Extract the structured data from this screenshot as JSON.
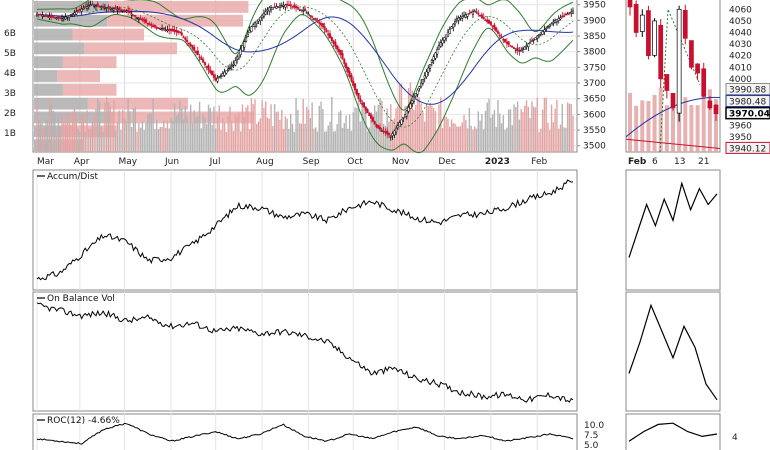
{
  "chart_data": [
    {
      "type": "candlestick",
      "panel": "price",
      "x_months": [
        "Mar",
        "Apr",
        "May",
        "Jun",
        "Jul",
        "Aug",
        "Sep",
        "Oct",
        "Nov",
        "Dec",
        "2023",
        "Feb"
      ],
      "y_ticks": [
        3500,
        3550,
        3600,
        3650,
        3700,
        3750,
        3800,
        3850,
        3900,
        3950
      ],
      "ylim": [
        3480,
        3965
      ],
      "volume_by_price_labels": [
        "1B",
        "2B",
        "3B",
        "4B",
        "5B",
        "6B"
      ],
      "volume_by_price_units": [
        0.9,
        1.5,
        4.0,
        2.8,
        1.5,
        1.2,
        1.5,
        2.6,
        2.0,
        3.8,
        3.9
      ],
      "close_anchors": [
        [
          0,
          3920
        ],
        [
          14,
          3905
        ],
        [
          30,
          3950
        ],
        [
          50,
          3930
        ],
        [
          65,
          3880
        ],
        [
          80,
          3860
        ],
        [
          90,
          3790
        ],
        [
          100,
          3710
        ],
        [
          110,
          3760
        ],
        [
          120,
          3880
        ],
        [
          130,
          3940
        ],
        [
          140,
          3950
        ],
        [
          150,
          3930
        ],
        [
          160,
          3880
        ],
        [
          170,
          3790
        ],
        [
          180,
          3650
        ],
        [
          190,
          3560
        ],
        [
          198,
          3530
        ],
        [
          206,
          3600
        ],
        [
          215,
          3700
        ],
        [
          225,
          3820
        ],
        [
          235,
          3905
        ],
        [
          245,
          3930
        ],
        [
          255,
          3880
        ],
        [
          262,
          3830
        ],
        [
          270,
          3800
        ],
        [
          280,
          3850
        ],
        [
          290,
          3900
        ],
        [
          300,
          3930
        ]
      ]
    },
    {
      "type": "candlestick",
      "panel": "price-detail",
      "x_ticks": [
        "Feb",
        "6",
        "13",
        "21"
      ],
      "y_ticks": [
        3950,
        3960,
        3970,
        3980,
        3990,
        4000,
        4010,
        4020,
        4030,
        4040,
        4050,
        4060
      ],
      "ylim": [
        3937,
        4068
      ],
      "value_labels": [
        "3990.88",
        "3980.48",
        "3970.04",
        "3940.12"
      ],
      "close_anchors": [
        [
          0,
          4062
        ],
        [
          1,
          4040
        ],
        [
          2,
          4055
        ],
        [
          3,
          4020
        ],
        [
          4,
          4050
        ],
        [
          5,
          4000
        ],
        [
          6,
          3990
        ],
        [
          7,
          3975
        ],
        [
          8,
          4060
        ],
        [
          9,
          4035
        ],
        [
          10,
          4010
        ],
        [
          11,
          4005
        ],
        [
          12,
          3985
        ],
        [
          13,
          3975
        ],
        [
          14,
          3970
        ]
      ]
    },
    {
      "type": "line",
      "panel": "accum-dist",
      "title": "Accum/Dist",
      "values": [
        0.05,
        0.1,
        0.28,
        0.46,
        0.4,
        0.22,
        0.25,
        0.38,
        0.55,
        0.74,
        0.72,
        0.63,
        0.66,
        0.6,
        0.72,
        0.78,
        0.7,
        0.62,
        0.58,
        0.65,
        0.66,
        0.72,
        0.8,
        0.86,
        0.98
      ],
      "detail_values": [
        0.25,
        0.5,
        0.75,
        0.55,
        0.8,
        0.6,
        0.95,
        0.7,
        0.9,
        0.75,
        0.85
      ]
    },
    {
      "type": "line",
      "panel": "on-balance-volume",
      "title": "On Balance Vol",
      "values": [
        0.95,
        0.9,
        0.85,
        0.88,
        0.8,
        0.83,
        0.75,
        0.78,
        0.7,
        0.73,
        0.68,
        0.7,
        0.66,
        0.6,
        0.45,
        0.3,
        0.35,
        0.25,
        0.2,
        0.12,
        0.08,
        0.1,
        0.05,
        0.1,
        0.03
      ],
      "detail_values": [
        0.3,
        0.6,
        0.95,
        0.7,
        0.45,
        0.75,
        0.55,
        0.2,
        0.05
      ]
    },
    {
      "type": "line",
      "panel": "roc",
      "title": "ROC(12) -4.66%",
      "y_ticks": [
        "10.0",
        "7.5",
        "5.0"
      ],
      "values": [
        0.3,
        0.2,
        0.1,
        0.7,
        0.95,
        0.5,
        0.2,
        0.4,
        0.6,
        0.3,
        0.5,
        0.9,
        0.4,
        0.2,
        0.5,
        0.3,
        0.6,
        0.8,
        0.4,
        0.3,
        0.45,
        0.2,
        0.35,
        0.5,
        0.3
      ],
      "detail_tick": "4",
      "detail_values": [
        0.2,
        0.6,
        0.9,
        0.95,
        0.6,
        0.4,
        0.5
      ]
    }
  ]
}
